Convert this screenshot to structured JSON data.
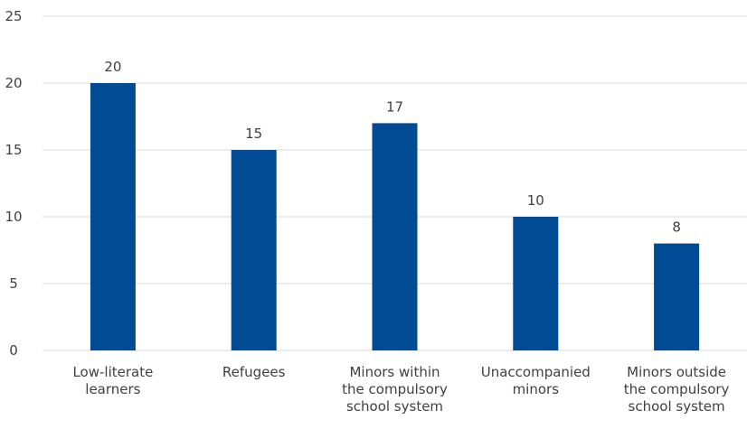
{
  "chart_data": {
    "type": "bar",
    "categories": [
      [
        "Low-literate",
        "learners"
      ],
      [
        "Refugees"
      ],
      [
        "Minors within",
        "the compulsory",
        "school system"
      ],
      [
        "Unaccompanied",
        "minors"
      ],
      [
        "Minors outside",
        "the compulsory",
        "school system"
      ]
    ],
    "values": [
      20,
      15,
      17,
      10,
      8
    ],
    "ylim": [
      0,
      25
    ],
    "yticks": [
      0,
      5,
      10,
      15,
      20,
      25
    ],
    "grid": true,
    "title": "",
    "xlabel": "",
    "ylabel": ""
  },
  "colors": {
    "bar": "#004b93",
    "grid": "#d9d9d9",
    "text": "#404040"
  }
}
